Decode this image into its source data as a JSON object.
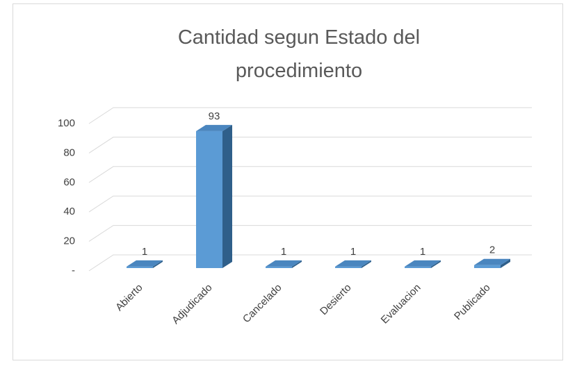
{
  "chart_data": {
    "type": "bar3d",
    "title": "Cantidad segun Estado del procedimiento",
    "categories": [
      "Abierto",
      "Adjudicado",
      "Cancelado",
      "Desierto",
      "Evaluacion",
      "Publicado"
    ],
    "values": [
      1,
      93,
      1,
      1,
      1,
      2
    ],
    "color": "#5b9bd5",
    "ylim": [
      0,
      100
    ],
    "yticks": [
      {
        "value": 0,
        "label": "-"
      },
      20,
      40,
      60,
      80,
      100
    ],
    "grid": true
  }
}
